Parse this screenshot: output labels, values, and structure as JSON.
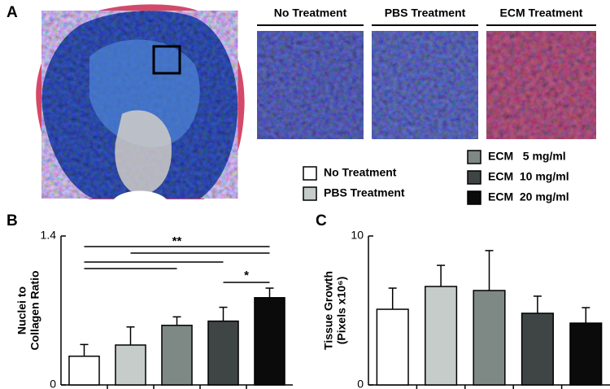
{
  "figure": {
    "panel_labels": [
      "A",
      "B",
      "C"
    ],
    "image_labels": [
      "No Treatment",
      "PBS Treatment",
      "ECM Treatment"
    ]
  },
  "legend": {
    "items": [
      {
        "name": "No Treatment",
        "color": "#ffffff"
      },
      {
        "name": "PBS Treatment",
        "color": "#c5ccc9"
      },
      {
        "name": "ECM   5 mg/ml",
        "color": "#7e8986"
      },
      {
        "name": "ECM  10 mg/ml",
        "color": "#3f4545"
      },
      {
        "name": "ECM  20 mg/ml",
        "color": "#0b0b0b"
      }
    ]
  },
  "chart_data": [
    {
      "type": "bar",
      "ylabel": [
        "Nuclei to",
        "Collagen Ratio"
      ],
      "categories": [
        null,
        null,
        null,
        null,
        null
      ],
      "values": [
        0.27,
        0.375,
        0.56,
        0.6,
        0.82
      ],
      "errors": [
        0.11,
        0.17,
        0.08,
        0.13,
        0.09
      ],
      "ylim": [
        0,
        1.4
      ],
      "yticks": [
        0,
        1.4
      ],
      "annotations": [
        "**",
        "*"
      ]
    },
    {
      "type": "bar",
      "ylabel": [
        "Tissue Growth",
        "(Pixels x10⁶)"
      ],
      "categories": [
        null,
        null,
        null,
        null,
        null
      ],
      "values": [
        5.08,
        6.61,
        6.34,
        4.81,
        4.15
      ],
      "errors": [
        1.42,
        1.42,
        2.68,
        1.15,
        1.04
      ],
      "ylim": [
        0,
        10
      ],
      "yticks": [
        0,
        10
      ]
    }
  ]
}
